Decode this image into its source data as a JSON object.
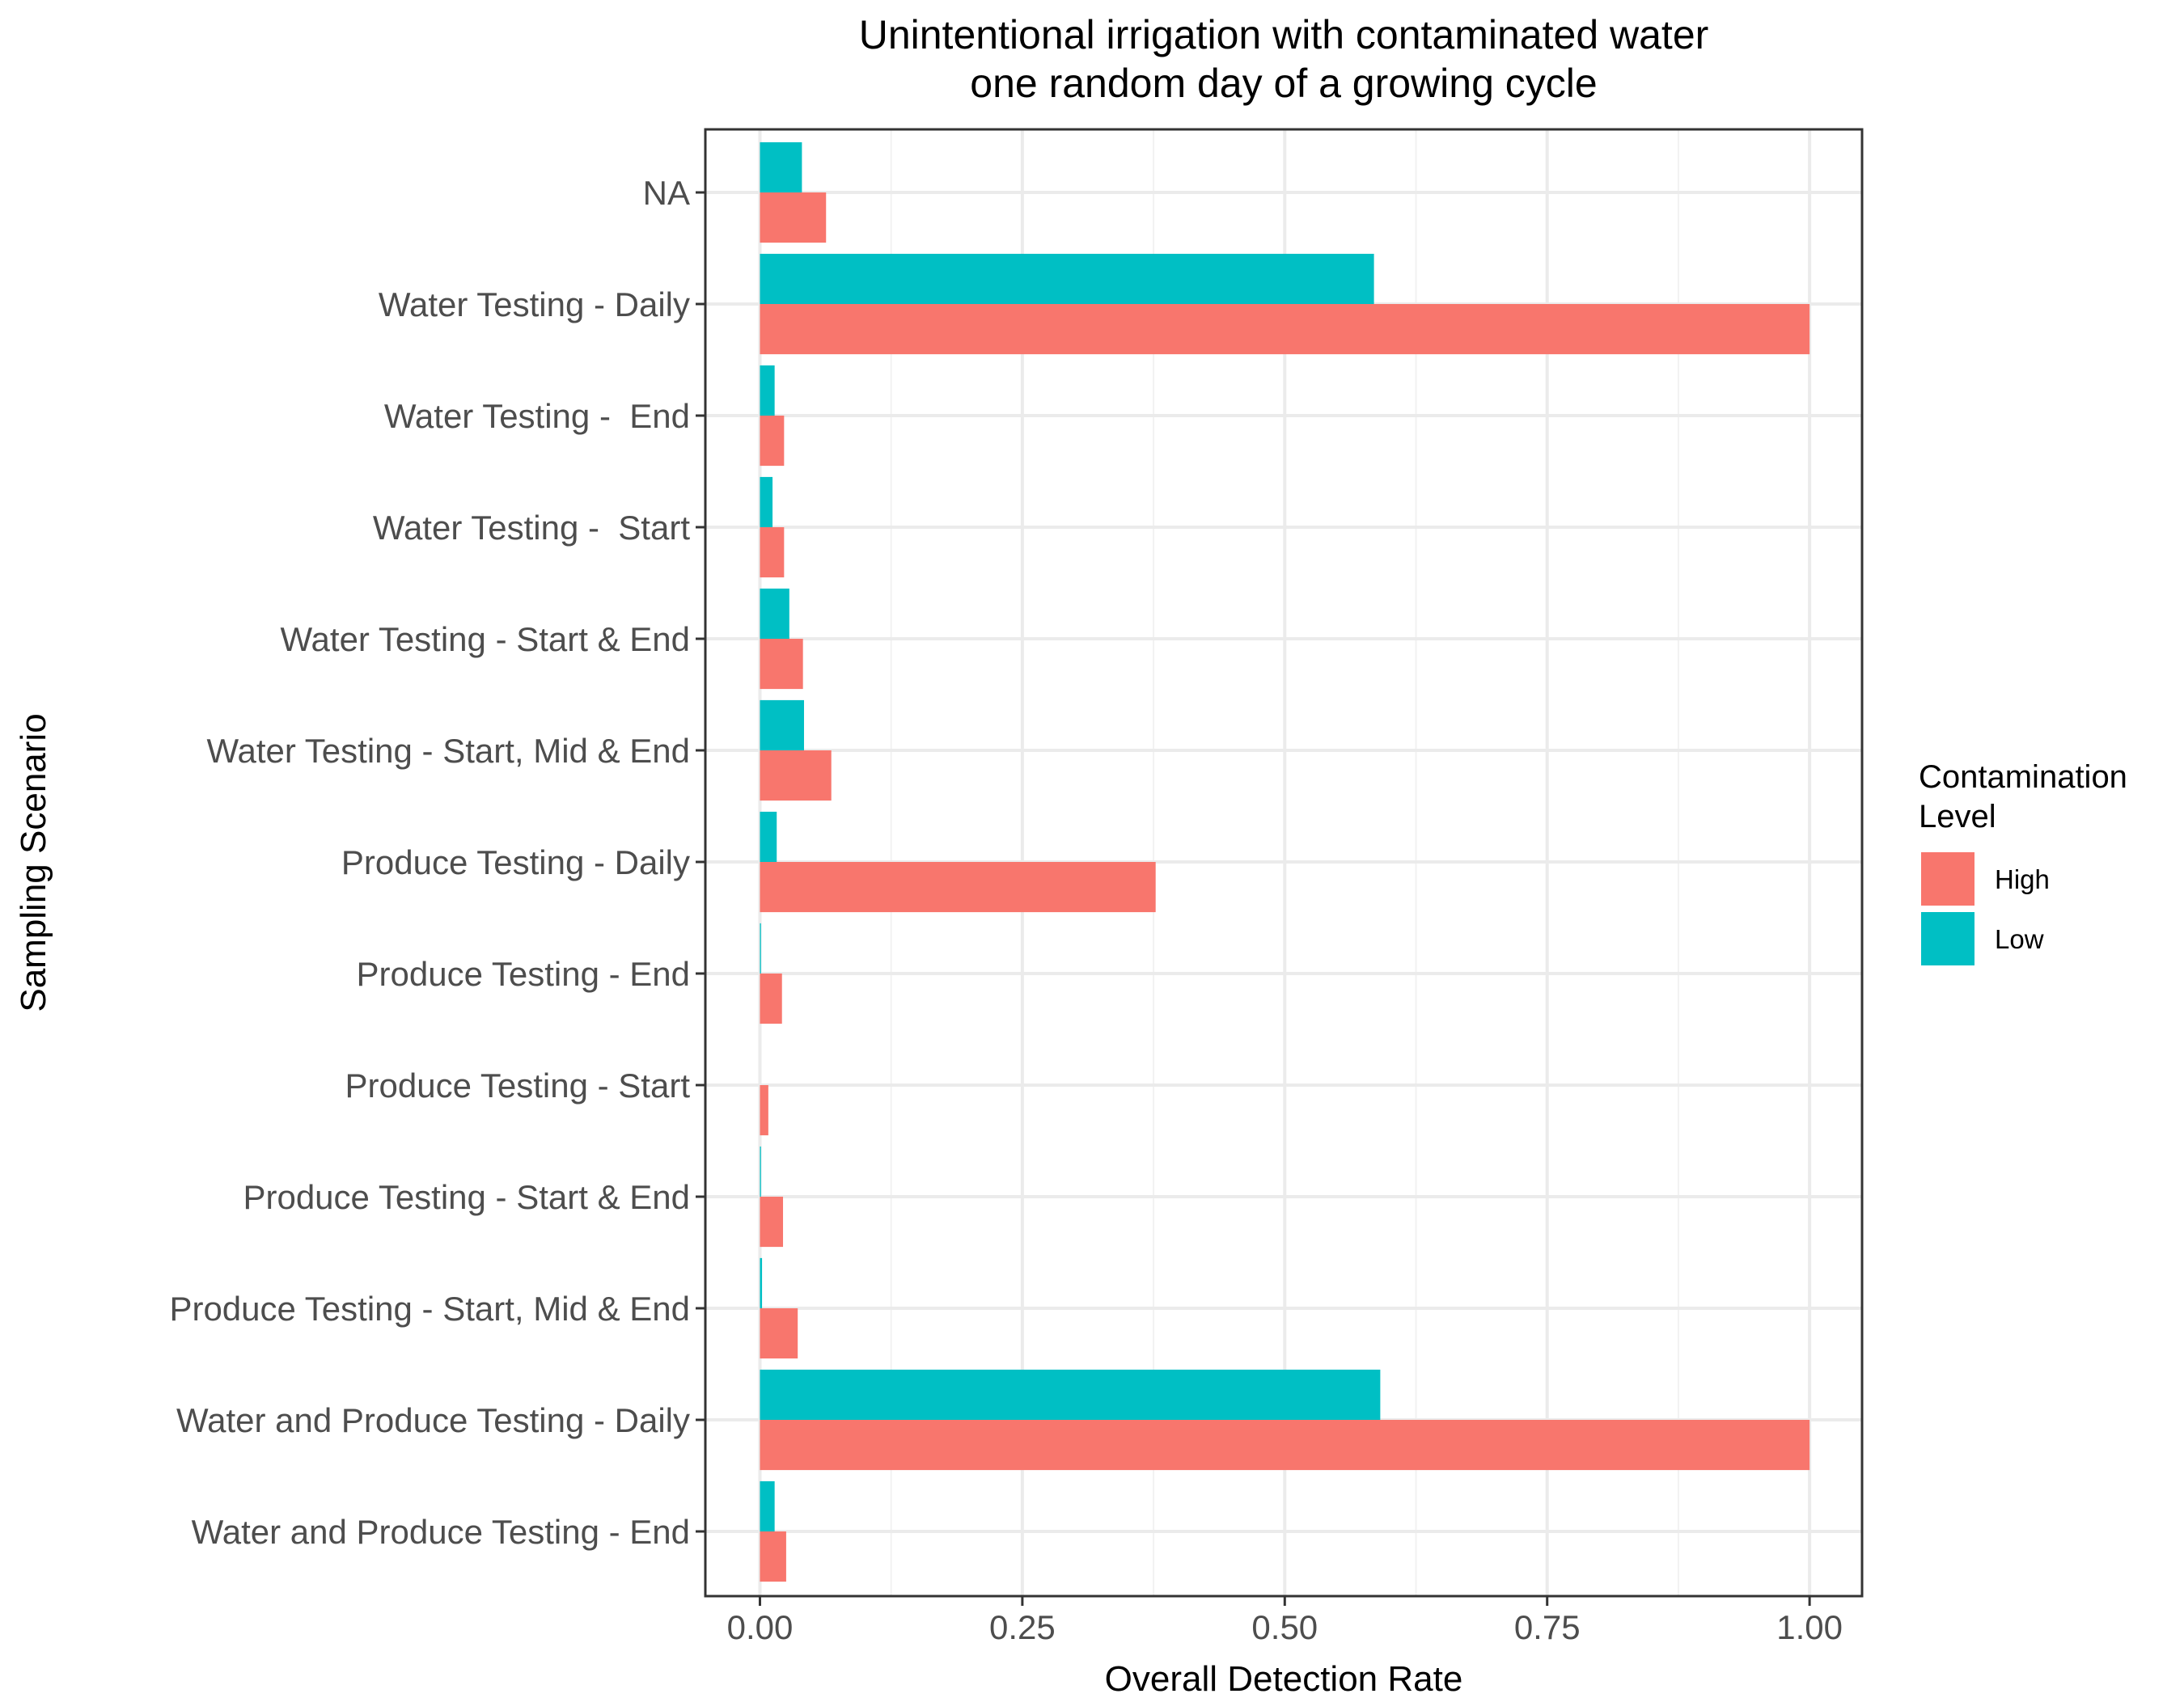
{
  "chart_data": {
    "type": "bar",
    "orientation": "horizontal",
    "title": "Unintentional irrigation with contaminated water",
    "subtitle": "one random day of a growing cycle",
    "xlabel": "Overall Detection Rate",
    "ylabel": "Sampling Scenario",
    "xlim": [
      -0.052,
      1.05
    ],
    "xticks": [
      0,
      0.25,
      0.5,
      0.75,
      1
    ],
    "xtick_labels": [
      "0.00",
      "0.25",
      "0.50",
      "0.75",
      "1.00"
    ],
    "grid": true,
    "legend": {
      "title_lines": [
        "Contamination",
        "Level"
      ],
      "placement": "right",
      "entries": [
        "High",
        "Low"
      ]
    },
    "categories": [
      "NA",
      "Water Testing - Daily",
      "Water Testing -  End",
      "Water Testing -  Start",
      "Water Testing - Start & End",
      "Water Testing - Start, Mid & End",
      "Produce Testing - Daily",
      "Produce Testing - End",
      "Produce Testing - Start",
      "Produce Testing - Start & End",
      "Produce Testing - Start, Mid & End",
      "Water and Produce Testing - Daily",
      "Water and Produce Testing - End"
    ],
    "series": [
      {
        "name": "High",
        "color": "#F8766D",
        "values": [
          0.063,
          1.0,
          0.023,
          0.023,
          0.041,
          0.068,
          0.377,
          0.021,
          0.008,
          0.022,
          0.036,
          1.0,
          0.025
        ]
      },
      {
        "name": "Low",
        "color": "#00BFC4",
        "values": [
          0.04,
          0.585,
          0.014,
          0.012,
          0.028,
          0.042,
          0.016,
          0.001,
          0.0,
          0.001,
          0.002,
          0.591,
          0.014
        ]
      }
    ]
  }
}
